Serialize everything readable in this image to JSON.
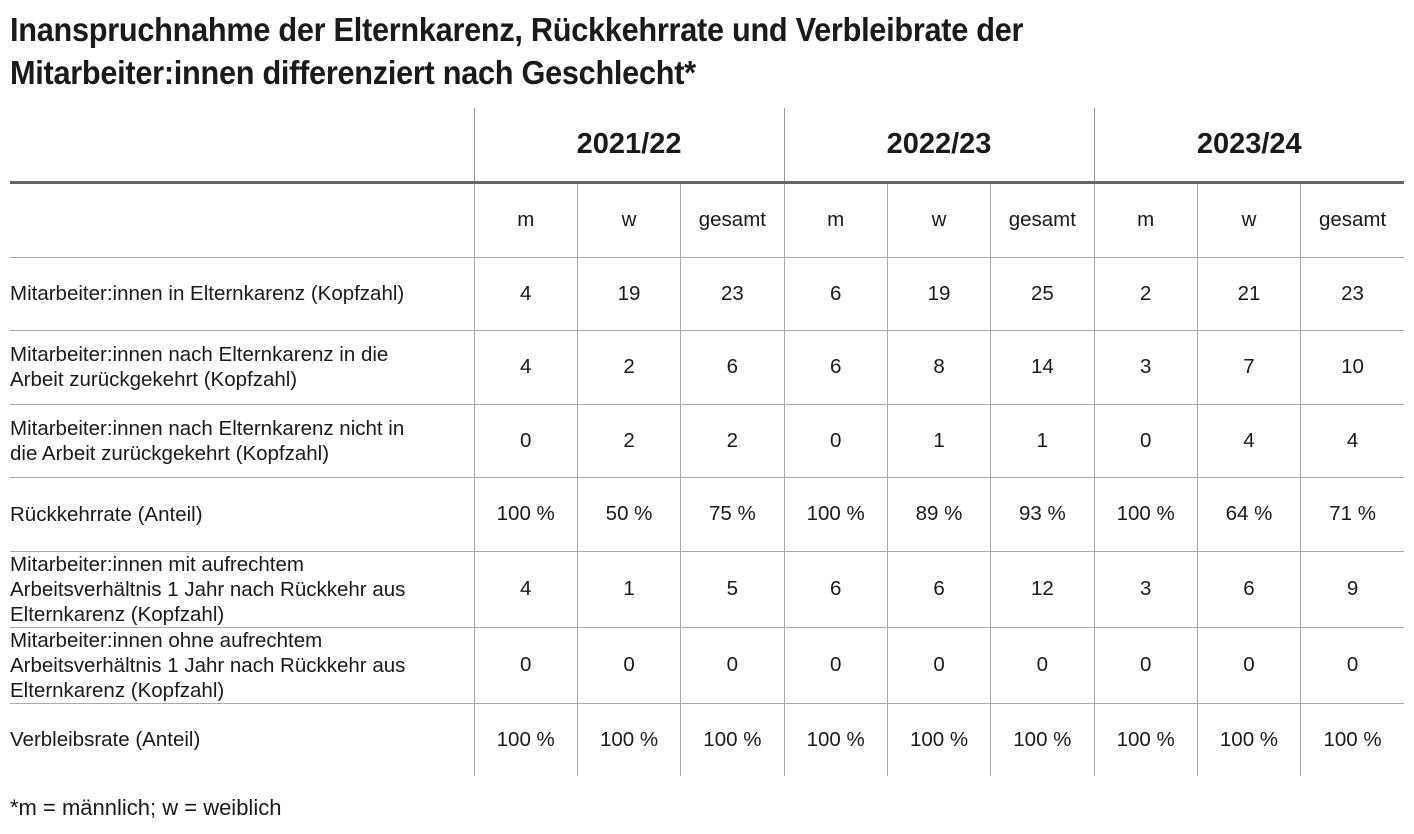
{
  "title": "Inanspruchnahme der Elternkarenz, Rückkehrrate und Verbleibrate der Mitarbeiter:innen differenziert nach Geschlecht*",
  "years": [
    "2021/22",
    "2022/23",
    "2023/24"
  ],
  "subheaders": [
    "m",
    "w",
    "gesamt",
    "m",
    "w",
    "gesamt",
    "m",
    "w",
    "gesamt"
  ],
  "rows": [
    {
      "label": "Mitarbeiter:innen in Elternkarenz (Kopfzahl)",
      "values": [
        "4",
        "19",
        "23",
        "6",
        "19",
        "25",
        "2",
        "21",
        "23"
      ]
    },
    {
      "label": "Mitarbeiter:innen nach Elternkarenz in die Arbeit zurückgekehrt (Kopfzahl)",
      "values": [
        "4",
        "2",
        "6",
        "6",
        "8",
        "14",
        "3",
        "7",
        "10"
      ]
    },
    {
      "label": "Mitarbeiter:innen nach Elternkarenz nicht in die Arbeit zurückgekehrt (Kopfzahl)",
      "values": [
        "0",
        "2",
        "2",
        "0",
        "1",
        "1",
        "0",
        "4",
        "4"
      ]
    },
    {
      "label": "Rückkehrrate (Anteil)",
      "values": [
        "100 %",
        "50 %",
        "75 %",
        "100 %",
        "89 %",
        "93 %",
        "100 %",
        "64 %",
        "71 %"
      ]
    },
    {
      "label": "Mitarbeiter:innen mit aufrechtem Arbeitsverhältnis 1 Jahr nach Rückkehr aus Elternkarenz (Kopfzahl)",
      "values": [
        "4",
        "1",
        "5",
        "6",
        "6",
        "12",
        "3",
        "6",
        "9"
      ]
    },
    {
      "label": "Mitarbeiter:innen ohne aufrechtem Arbeitsverhältnis 1 Jahr nach Rückkehr aus Elternkarenz (Kopfzahl)",
      "values": [
        "0",
        "0",
        "0",
        "0",
        "0",
        "0",
        "0",
        "0",
        "0"
      ]
    },
    {
      "label": "Verbleibsrate (Anteil)",
      "values": [
        "100 %",
        "100 %",
        "100 %",
        "100 %",
        "100 %",
        "100 %",
        "100 %",
        "100 %",
        "100 %"
      ]
    }
  ],
  "footnote": "*m = männlich; w = weiblich"
}
